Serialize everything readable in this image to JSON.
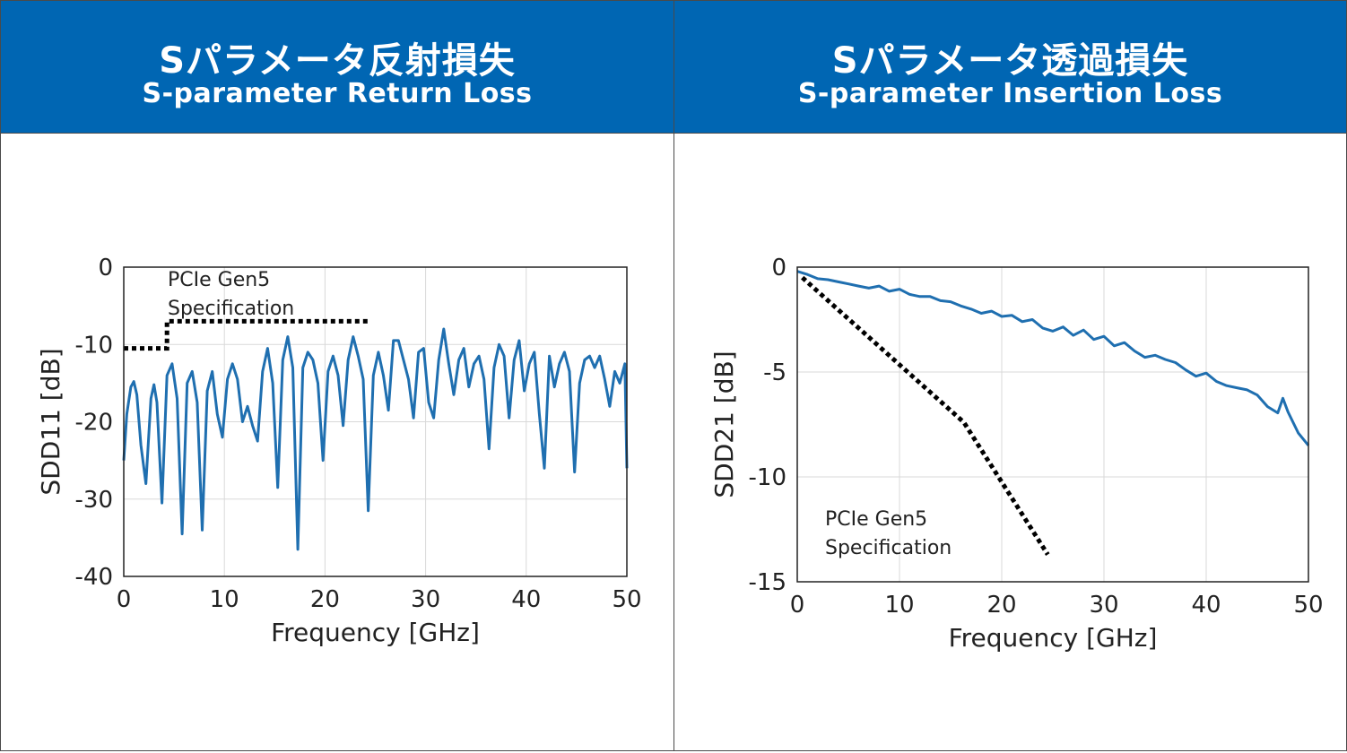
{
  "panels": {
    "left": {
      "title_ja": "Sパラメータ反射損失",
      "title_en": "S-parameter Return Loss"
    },
    "right": {
      "title_ja": "Sパラメータ透過損失",
      "title_en": "S-parameter Insertion Loss"
    }
  },
  "colors": {
    "header": "#0066b3",
    "curve": "#1f6fb0",
    "spec": "#000000",
    "grid": "#d9d9d9"
  },
  "chart_data": [
    {
      "type": "line",
      "title": "",
      "xlabel": "Frequency [GHz]",
      "ylabel": "SDD11 [dB]",
      "xlim": [
        0,
        50
      ],
      "ylim": [
        -40,
        0
      ],
      "xticks": [
        0,
        10,
        20,
        30,
        40,
        50
      ],
      "yticks": [
        0,
        -10,
        -20,
        -30,
        -40
      ],
      "grid": true,
      "annotation": [
        "PCIe Gen5",
        "Specification"
      ],
      "series": [
        {
          "style": "solid",
          "x": [
            0,
            0.3,
            0.7,
            1.0,
            1.3,
            1.7,
            2.2,
            2.7,
            3.0,
            3.3,
            3.8,
            4.3,
            4.8,
            5.3,
            5.8,
            6.3,
            6.8,
            7.3,
            7.8,
            8.3,
            8.8,
            9.3,
            9.8,
            10.3,
            10.8,
            11.3,
            11.8,
            12.3,
            12.8,
            13.3,
            13.8,
            14.3,
            14.8,
            15.3,
            15.8,
            16.3,
            16.8,
            17.3,
            17.8,
            18.3,
            18.8,
            19.3,
            19.8,
            20.3,
            20.8,
            21.3,
            21.8,
            22.3,
            22.8,
            23.3,
            23.8,
            24.3,
            24.8,
            25.3,
            25.8,
            26.3,
            26.8,
            27.3,
            27.8,
            28.3,
            28.8,
            29.3,
            29.8,
            30.3,
            30.8,
            31.3,
            31.8,
            32.3,
            32.8,
            33.3,
            33.8,
            34.3,
            34.8,
            35.3,
            35.8,
            36.3,
            36.8,
            37.3,
            37.8,
            38.3,
            38.8,
            39.3,
            39.8,
            40.3,
            40.8,
            41.3,
            41.8,
            42.3,
            42.8,
            43.3,
            43.8,
            44.3,
            44.8,
            45.3,
            45.8,
            46.3,
            46.8,
            47.3,
            47.8,
            48.3,
            48.8,
            49.3,
            49.8,
            50
          ],
          "y": [
            -25,
            -19,
            -15.5,
            -14.8,
            -16.5,
            -23,
            -28,
            -17,
            -15.2,
            -17.5,
            -30.5,
            -14,
            -12.5,
            -17,
            -34.5,
            -15,
            -13.5,
            -17.5,
            -34,
            -16,
            -13.5,
            -19,
            -22,
            -14.5,
            -12.5,
            -14.5,
            -20,
            -18,
            -20.5,
            -22.5,
            -13.5,
            -10.5,
            -15,
            -28.5,
            -12,
            -9,
            -13,
            -36.5,
            -13,
            -11,
            -12,
            -15,
            -25,
            -13.5,
            -11.5,
            -14,
            -20.5,
            -12,
            -9,
            -11.5,
            -14.5,
            -31.5,
            -14,
            -11,
            -14,
            -18.5,
            -9.5,
            -9.5,
            -12,
            -14.5,
            -19.5,
            -11,
            -10.5,
            -17.5,
            -19.5,
            -12,
            -8,
            -12.5,
            -16.5,
            -12,
            -10.5,
            -15.5,
            -12.5,
            -11.5,
            -14.5,
            -23.5,
            -13,
            -10,
            -11.5,
            -19.5,
            -12,
            -9.5,
            -16,
            -12.5,
            -11,
            -19,
            -26,
            -11.5,
            -15.5,
            -12.5,
            -11,
            -13.5,
            -26.5,
            -15,
            -12,
            -11.5,
            -13,
            -11.5,
            -14.5,
            -18,
            -13.5,
            -15,
            -12.5,
            -26
          ]
        },
        {
          "style": "dotted",
          "x": [
            0,
            4.3,
            4.3,
            24.5
          ],
          "y": [
            -10.5,
            -10.5,
            -7,
            -7
          ]
        }
      ]
    },
    {
      "type": "line",
      "title": "",
      "xlabel": "Frequency [GHz]",
      "ylabel": "SDD21 [dB]",
      "xlim": [
        0,
        50
      ],
      "ylim": [
        -15,
        0
      ],
      "xticks": [
        0,
        10,
        20,
        30,
        40,
        50
      ],
      "yticks": [
        0,
        -5,
        -10,
        -15
      ],
      "grid": true,
      "annotation": [
        "PCIe Gen5",
        "Specification"
      ],
      "series": [
        {
          "style": "solid",
          "x": [
            0,
            1,
            2,
            3,
            4,
            5,
            6,
            7,
            8,
            9,
            10,
            11,
            12,
            13,
            14,
            15,
            16,
            17,
            18,
            19,
            20,
            21,
            22,
            23,
            24,
            25,
            26,
            27,
            28,
            29,
            30,
            31,
            32,
            33,
            34,
            35,
            36,
            37,
            38,
            39,
            40,
            41,
            42,
            43,
            44,
            45,
            46,
            47,
            47.5,
            48,
            49,
            50
          ],
          "y": [
            -0.2,
            -0.35,
            -0.55,
            -0.6,
            -0.7,
            -0.8,
            -0.9,
            -1.0,
            -0.9,
            -1.15,
            -1.05,
            -1.3,
            -1.4,
            -1.4,
            -1.6,
            -1.65,
            -1.85,
            -2.0,
            -2.2,
            -2.1,
            -2.35,
            -2.3,
            -2.6,
            -2.5,
            -2.9,
            -3.05,
            -2.85,
            -3.25,
            -3.0,
            -3.45,
            -3.3,
            -3.75,
            -3.6,
            -4.0,
            -4.3,
            -4.2,
            -4.4,
            -4.55,
            -4.9,
            -5.2,
            -5.05,
            -5.45,
            -5.65,
            -5.75,
            -5.85,
            -6.1,
            -6.65,
            -6.95,
            -6.25,
            -6.9,
            -7.9,
            -8.5
          ]
        },
        {
          "style": "dotted",
          "x": [
            0.5,
            16.3,
            24.5
          ],
          "y": [
            -0.5,
            -7.4,
            -13.7
          ]
        }
      ]
    }
  ]
}
